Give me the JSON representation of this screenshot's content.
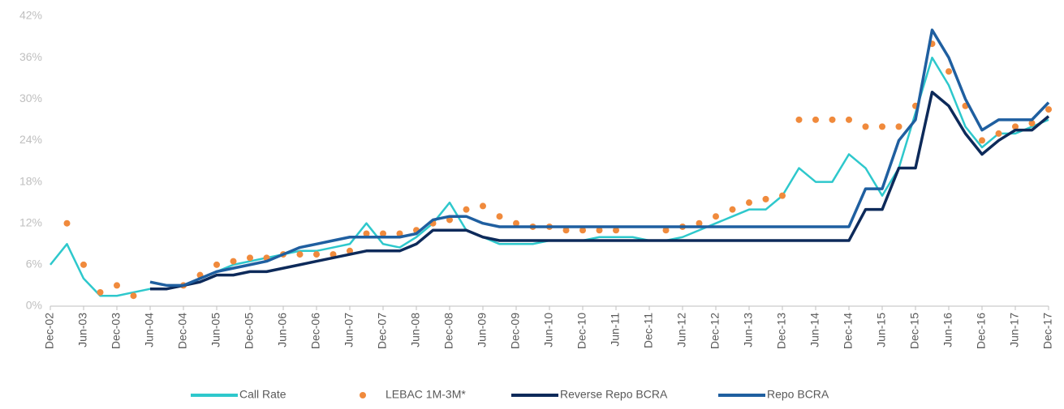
{
  "chart_data": {
    "type": "line",
    "categories": [
      "Dec-02",
      null,
      "Jun-03",
      null,
      "Dec-03",
      null,
      "Jun-04",
      null,
      "Dec-04",
      null,
      "Jun-05",
      null,
      "Dec-05",
      null,
      "Jun-06",
      null,
      "Dec-06",
      null,
      "Jun-07",
      null,
      "Dec-07",
      null,
      "Jun-08",
      null,
      "Dec-08",
      null,
      "Jun-09",
      null,
      "Dec-09",
      null,
      "Jun-10",
      null,
      "Dec-10",
      null,
      "Jun-11",
      null,
      "Dec-11",
      null,
      "Jun-12",
      null,
      "Dec-12",
      null,
      "Jun-13",
      null,
      "Dec-13",
      null,
      "Jun-14",
      null,
      "Dec-14",
      null,
      "Jun-15",
      null,
      "Dec-15",
      null,
      "Jun-16",
      null,
      "Dec-16",
      null,
      "Jun-17",
      null,
      "Dec-17"
    ],
    "series": [
      {
        "name": "Call Rate",
        "color": "#2ec8cc",
        "style": "line",
        "values": [
          6,
          9,
          4,
          1.5,
          1.5,
          2,
          2.5,
          2.5,
          3,
          4,
          5,
          6,
          6.5,
          7,
          7.5,
          8,
          8,
          8.5,
          9,
          12,
          9,
          8.5,
          10,
          12,
          15,
          11,
          10,
          9,
          9,
          9,
          9.5,
          9.5,
          9.5,
          10,
          10,
          10,
          9.5,
          9.5,
          10,
          11,
          12,
          13,
          14,
          14,
          16,
          20,
          18,
          18,
          22,
          20,
          16,
          20,
          28,
          36,
          32,
          26,
          23,
          25,
          25,
          26,
          27
        ]
      },
      {
        "name": "LEBAC 1M-3M*",
        "color": "#f08a3c",
        "style": "markers",
        "values": [
          null,
          12,
          6,
          2,
          3,
          1.5,
          null,
          null,
          3,
          4.5,
          6,
          6.5,
          7,
          7,
          7.5,
          7.5,
          7.5,
          7.5,
          8,
          10.5,
          10.5,
          10.5,
          11,
          12,
          12.5,
          14,
          14.5,
          13,
          12,
          11.5,
          11.5,
          11,
          11,
          11,
          11,
          null,
          null,
          11,
          11.5,
          12,
          13,
          14,
          15,
          15.5,
          16,
          27,
          27,
          27,
          27,
          26,
          26,
          26,
          29,
          38,
          34,
          29,
          24,
          25,
          26,
          26.5,
          28.5
        ]
      },
      {
        "name": "Reverse Repo BCRA",
        "color": "#0d2a5a",
        "style": "line",
        "values": [
          null,
          null,
          null,
          null,
          null,
          null,
          2.5,
          2.5,
          3,
          3.5,
          4.5,
          4.5,
          5,
          5,
          5.5,
          6,
          6.5,
          7,
          7.5,
          8,
          8,
          8,
          9,
          11,
          11,
          11,
          10,
          9.5,
          9.5,
          9.5,
          9.5,
          9.5,
          9.5,
          9.5,
          9.5,
          9.5,
          9.5,
          9.5,
          9.5,
          9.5,
          9.5,
          9.5,
          9.5,
          9.5,
          9.5,
          9.5,
          9.5,
          9.5,
          9.5,
          14,
          14,
          20,
          20,
          31,
          29,
          25,
          22,
          24,
          25.5,
          25.5,
          27.5
        ]
      },
      {
        "name": "Repo BCRA",
        "color": "#1f5fa0",
        "style": "line",
        "values": [
          null,
          null,
          null,
          null,
          null,
          null,
          3.5,
          3,
          3,
          4,
          5,
          5.5,
          6,
          6.5,
          7.5,
          8.5,
          9,
          9.5,
          10,
          10,
          10,
          10,
          10.5,
          12.5,
          13,
          13,
          12,
          11.5,
          11.5,
          11.5,
          11.5,
          11.5,
          11.5,
          11.5,
          11.5,
          11.5,
          11.5,
          11.5,
          11.5,
          11.5,
          11.5,
          11.5,
          11.5,
          11.5,
          11.5,
          11.5,
          11.5,
          11.5,
          11.5,
          17,
          17,
          24,
          27,
          40,
          36,
          30,
          25.5,
          27,
          27,
          27,
          29.5
        ]
      }
    ],
    "ylim": [
      0,
      42
    ],
    "yticks": [
      {
        "value": 0,
        "label": "0%"
      },
      {
        "value": 6,
        "label": "6%"
      },
      {
        "value": 12,
        "label": "12%"
      },
      {
        "value": 18,
        "label": "18%"
      },
      {
        "value": 24,
        "label": "24%"
      },
      {
        "value": 30,
        "label": "30%"
      },
      {
        "value": 36,
        "label": "36%"
      },
      {
        "value": 42,
        "label": "42%"
      }
    ],
    "grid": false,
    "legend": "bottom"
  }
}
